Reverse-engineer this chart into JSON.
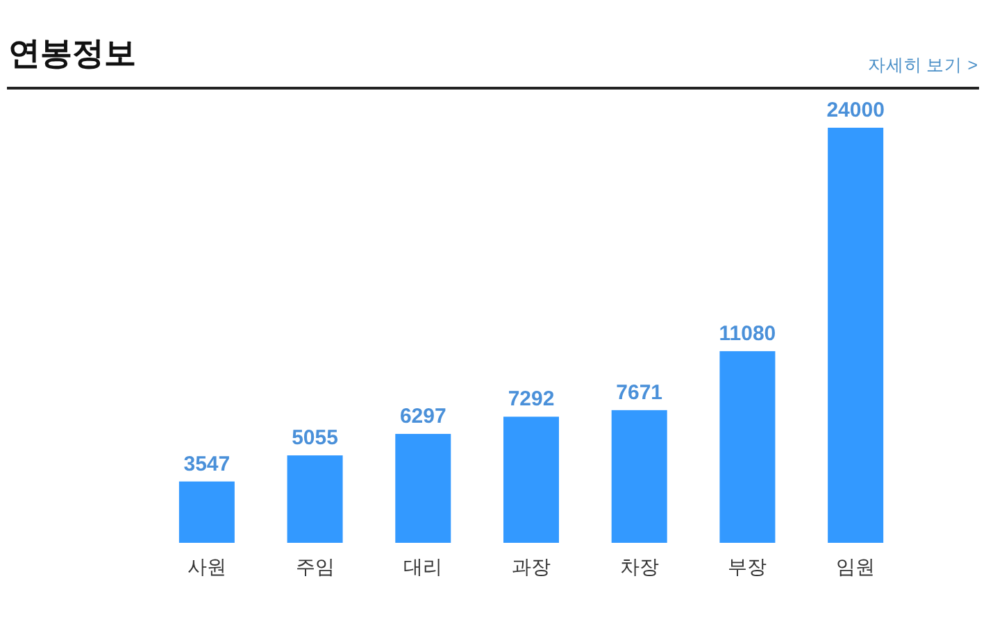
{
  "chart_data": {
    "type": "bar",
    "title": "연봉정보",
    "categories": [
      "사원",
      "주임",
      "대리",
      "과장",
      "차장",
      "부장",
      "임원"
    ],
    "values": [
      3547,
      5055,
      6297,
      7292,
      7671,
      11080,
      24000
    ],
    "color": "#3399ff",
    "data_labels": true,
    "annotations": [
      "자세히 보기 >"
    ]
  }
}
